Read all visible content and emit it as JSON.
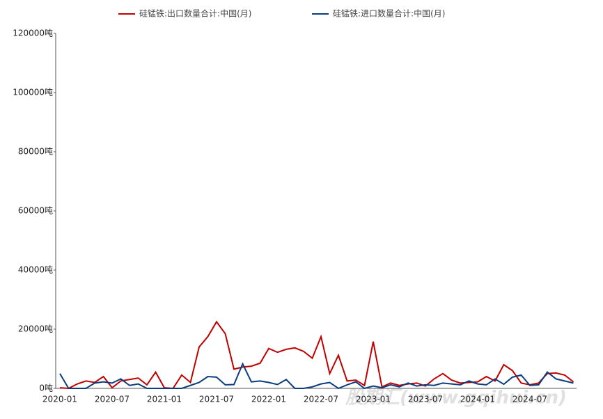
{
  "chart_data": {
    "type": "line",
    "categories": [
      "2020-01",
      null,
      null,
      null,
      null,
      null,
      "2020-07",
      null,
      null,
      null,
      null,
      null,
      "2021-01",
      null,
      null,
      null,
      null,
      null,
      "2021-07",
      null,
      null,
      null,
      null,
      null,
      "2022-01",
      null,
      null,
      null,
      null,
      null,
      "2022-07",
      null,
      null,
      null,
      null,
      null,
      "2023-01",
      null,
      null,
      null,
      null,
      null,
      "2023-07",
      null,
      null,
      null,
      null,
      null,
      "2024-01",
      null,
      null,
      null,
      null,
      null,
      "2024-07",
      null,
      null,
      null,
      null,
      null
    ],
    "series": [
      {
        "name": "硅锰铁:出口数量合计:中国(月)",
        "color": "#c00000",
        "values": [
          200,
          0,
          1500,
          2500,
          2000,
          4000,
          200,
          2500,
          3000,
          3500,
          1200,
          5500,
          200,
          0,
          4500,
          2000,
          14000,
          17500,
          22500,
          18500,
          6500,
          7200,
          7500,
          8500,
          13500,
          12200,
          13200,
          13700,
          12500,
          10200,
          17500,
          5000,
          11200,
          2500,
          2800,
          1000,
          15800,
          500,
          1800,
          1000,
          1500,
          1800,
          800,
          3200,
          5000,
          2800,
          1800,
          2000,
          2200,
          4000,
          2500,
          8000,
          6000,
          1800,
          1200,
          1800,
          5000,
          5200,
          4500,
          2200
        ]
      },
      {
        "name": "硅锰铁:进口数量合计:中国(月)",
        "color": "#0b3d7e",
        "values": [
          5000,
          0,
          0,
          0,
          1800,
          2200,
          1800,
          3200,
          1000,
          1500,
          0,
          0,
          0,
          0,
          0,
          1000,
          2000,
          4000,
          3800,
          1200,
          1300,
          8300,
          2200,
          2500,
          2000,
          1300,
          3000,
          0,
          0,
          500,
          1500,
          2000,
          0,
          1200,
          2200,
          0,
          800,
          200,
          1200,
          500,
          1800,
          800,
          1200,
          1000,
          1800,
          1500,
          1200,
          2500,
          1500,
          1200,
          3200,
          1400,
          3800,
          4500,
          1000,
          1200,
          5500,
          3200,
          2500,
          1800
        ]
      }
    ],
    "ylim": [
      0,
      120000
    ],
    "yticks": [
      {
        "value": 0,
        "label": "0吨"
      },
      {
        "value": 20000,
        "label": "20000吨"
      },
      {
        "value": 40000,
        "label": "40000吨"
      },
      {
        "value": 60000,
        "label": "60000吨"
      },
      {
        "value": 80000,
        "label": "80000吨"
      },
      {
        "value": 100000,
        "label": "100000吨"
      },
      {
        "value": 120000,
        "label": "120000吨"
      }
    ],
    "legend": "top",
    "watermark": "股期汇(www.gqihui.cn)"
  }
}
